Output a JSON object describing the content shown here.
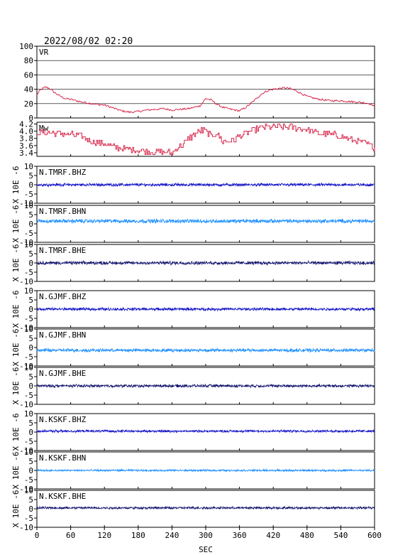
{
  "title": "2022/08/02 02:20",
  "chart_data": {
    "type": "line",
    "xlabel": "SEC",
    "xlim": [
      0,
      600
    ],
    "xticks": [
      "0",
      "60",
      "120",
      "180",
      "240",
      "300",
      "360",
      "420",
      "480",
      "540",
      "600"
    ],
    "panels": [
      {
        "label": "VR",
        "kind": "vr",
        "ylim": [
          0,
          100
        ],
        "yticks": [
          "0",
          "20",
          "40",
          "60",
          "80",
          "100"
        ],
        "color": "#d4143c",
        "x": [
          0,
          5,
          10,
          15,
          20,
          25,
          30,
          40,
          50,
          60,
          75,
          90,
          105,
          120,
          135,
          150,
          165,
          180,
          195,
          210,
          225,
          240,
          255,
          270,
          280,
          290,
          300,
          310,
          320,
          330,
          345,
          360,
          370,
          380,
          390,
          400,
          410,
          420,
          430,
          440,
          450,
          460,
          470,
          480,
          495,
          510,
          525,
          540,
          555,
          570,
          585,
          595,
          600
        ],
        "y": [
          32,
          38,
          41,
          43,
          42,
          40,
          36,
          31,
          27,
          26,
          23,
          21,
          19,
          18,
          14,
          10,
          8,
          9,
          11,
          12,
          13,
          11,
          12,
          13,
          15,
          17,
          27,
          25,
          19,
          15,
          12,
          10,
          14,
          20,
          27,
          34,
          38,
          40,
          41,
          42,
          41,
          38,
          34,
          30,
          27,
          25,
          24,
          24,
          23,
          22,
          21,
          19,
          15
        ]
      },
      {
        "label": "Mw",
        "kind": "mw",
        "ylim": [
          3.3,
          4.25
        ],
        "yticks": [
          "3.4",
          "3.6",
          "3.8",
          "4.0",
          "4.2"
        ],
        "color": "#d4143c",
        "x": [
          0,
          20,
          40,
          60,
          80,
          100,
          120,
          140,
          160,
          180,
          200,
          220,
          240,
          250,
          260,
          270,
          280,
          290,
          300,
          310,
          320,
          330,
          340,
          350,
          360,
          380,
          400,
          420,
          440,
          460,
          480,
          500,
          520,
          540,
          560,
          580,
          600
        ],
        "y": [
          3.98,
          3.95,
          3.95,
          3.9,
          3.85,
          3.7,
          3.65,
          3.55,
          3.5,
          3.48,
          3.45,
          3.42,
          3.4,
          3.55,
          3.65,
          3.8,
          3.9,
          4.02,
          4.0,
          3.85,
          3.95,
          3.7,
          3.72,
          3.75,
          3.88,
          4.0,
          4.1,
          4.12,
          4.12,
          4.1,
          4.05,
          3.95,
          3.92,
          3.85,
          3.75,
          3.68,
          3.55
        ]
      },
      {
        "label": "N.TMRF.BHZ",
        "kind": "wave",
        "ylim": [
          -10,
          10
        ],
        "yticks": [
          "-10",
          "-5",
          "0",
          "5",
          "10"
        ],
        "ylabel": "X 10E -6",
        "color": "#1414c8",
        "offset": 0,
        "amp": 0.6
      },
      {
        "label": "N.TMRF.BHN",
        "kind": "wave",
        "ylim": [
          -10,
          10
        ],
        "yticks": [
          "-10",
          "-5",
          "0",
          "5",
          "10"
        ],
        "ylabel": "X 10E -6",
        "color": "#1e90ff",
        "offset": 1.5,
        "amp": 0.8
      },
      {
        "label": "N.TMRF.BHE",
        "kind": "wave",
        "ylim": [
          -10,
          10
        ],
        "yticks": [
          "-10",
          "-5",
          "0",
          "5",
          "10"
        ],
        "ylabel": "X 10E -6",
        "color": "#14146e",
        "offset": 0,
        "amp": 0.7
      },
      {
        "label": "N.GJMF.BHZ",
        "kind": "wave",
        "ylim": [
          -10,
          10
        ],
        "yticks": [
          "-10",
          "-5",
          "0",
          "5",
          "10"
        ],
        "ylabel": "X 10E -6",
        "color": "#1414c8",
        "offset": 0,
        "amp": 0.6
      },
      {
        "label": "N.GJMF.BHN",
        "kind": "wave",
        "ylim": [
          -10,
          10
        ],
        "yticks": [
          "-10",
          "-5",
          "0",
          "5",
          "10"
        ],
        "ylabel": "X 10E -6",
        "color": "#1e90ff",
        "offset": -1.5,
        "amp": 0.7
      },
      {
        "label": "N.GJMF.BHE",
        "kind": "wave",
        "ylim": [
          -10,
          10
        ],
        "yticks": [
          "-10",
          "-5",
          "0",
          "5",
          "10"
        ],
        "ylabel": "X 10E -6",
        "color": "#14146e",
        "offset": 0,
        "amp": 0.6
      },
      {
        "label": "N.KSKF.BHZ",
        "kind": "wave",
        "ylim": [
          -10,
          10
        ],
        "yticks": [
          "-10",
          "-5",
          "0",
          "5",
          "10"
        ],
        "ylabel": "X 10E -6",
        "color": "#1414c8",
        "offset": 0.5,
        "amp": 0.5
      },
      {
        "label": "N.KSKF.BHN",
        "kind": "wave",
        "ylim": [
          -10,
          10
        ],
        "yticks": [
          "-10",
          "-5",
          "0",
          "5",
          "10"
        ],
        "ylabel": "X 10E -6",
        "color": "#1e90ff",
        "offset": 0,
        "amp": 0.4
      },
      {
        "label": "N.KSKF.BHE",
        "kind": "wave",
        "ylim": [
          -10,
          10
        ],
        "yticks": [
          "-10",
          "-5",
          "0",
          "5",
          "10"
        ],
        "ylabel": "X 10E -6",
        "color": "#14146e",
        "offset": 0.5,
        "amp": 0.5
      }
    ]
  }
}
